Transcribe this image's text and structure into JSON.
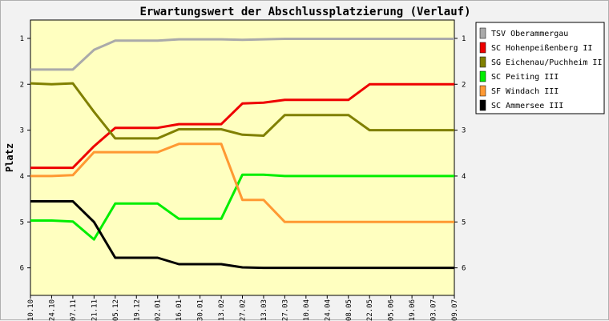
{
  "chart_data": {
    "type": "line",
    "title": "Erwartungswert der Abschlussplatzierung (Verlauf)",
    "ylabel": "Platz",
    "xlabel": "",
    "ylim": [
      0.6,
      6.6
    ],
    "y_inverted": true,
    "y_ticks": [
      "1",
      "2",
      "3",
      "4",
      "5",
      "6"
    ],
    "legend_position": "right",
    "categories": [
      "10.10",
      "24.10",
      "07.11",
      "21.11",
      "05.12",
      "19.12",
      "02.01",
      "16.01",
      "30.01",
      "13.02",
      "27.02",
      "13.03",
      "27.03",
      "10.04",
      "24.04",
      "08.05",
      "22.05",
      "05.06",
      "19.06",
      "03.07",
      "09.07"
    ],
    "series": [
      {
        "name": "TSV Oberammergau",
        "color": "#aaaaaa",
        "values": [
          1.68,
          1.68,
          1.68,
          1.25,
          1.05,
          1.05,
          1.05,
          1.02,
          1.02,
          1.02,
          1.03,
          1.02,
          1.01,
          1.01,
          1.01,
          1.01,
          1.01,
          1.01,
          1.01,
          1.01,
          1.01
        ]
      },
      {
        "name": "SC Hohenpeißenberg II",
        "color": "#ee0000",
        "values": [
          3.82,
          3.82,
          3.82,
          3.35,
          2.95,
          2.95,
          2.95,
          2.87,
          2.87,
          2.87,
          2.42,
          2.4,
          2.34,
          2.34,
          2.34,
          2.34,
          2.0,
          2.0,
          2.0,
          2.0,
          2.0
        ]
      },
      {
        "name": "SG Eichenau/Puchheim II",
        "color": "#808000",
        "values": [
          1.98,
          2.0,
          1.98,
          2.6,
          3.18,
          3.18,
          3.18,
          2.98,
          2.98,
          2.98,
          3.1,
          3.12,
          2.67,
          2.67,
          2.67,
          2.67,
          3.0,
          3.0,
          3.0,
          3.0,
          3.0
        ]
      },
      {
        "name": "SC Peiting III",
        "color": "#00ee00",
        "values": [
          4.97,
          4.97,
          4.99,
          5.38,
          4.6,
          4.6,
          4.6,
          4.93,
          4.93,
          4.93,
          3.97,
          3.97,
          4.0,
          4.0,
          4.0,
          4.0,
          4.0,
          4.0,
          4.0,
          4.0,
          4.0
        ]
      },
      {
        "name": "SF Windach III",
        "color": "#ff9933",
        "values": [
          4.0,
          4.0,
          3.98,
          3.48,
          3.48,
          3.48,
          3.48,
          3.3,
          3.3,
          3.3,
          4.52,
          4.52,
          5.0,
          5.0,
          5.0,
          5.0,
          5.0,
          5.0,
          5.0,
          5.0,
          5.0
        ]
      },
      {
        "name": "SC Ammersee III",
        "color": "#000000",
        "values": [
          4.55,
          4.55,
          4.55,
          5.0,
          5.78,
          5.78,
          5.78,
          5.92,
          5.92,
          5.92,
          5.99,
          6.0,
          6.0,
          6.0,
          6.0,
          6.0,
          6.0,
          6.0,
          6.0,
          6.0,
          6.0
        ]
      }
    ]
  }
}
